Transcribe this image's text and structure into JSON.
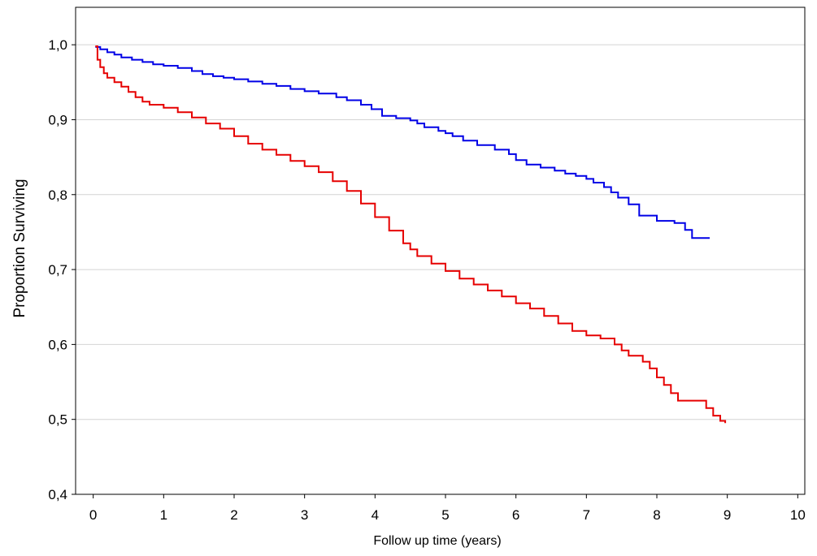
{
  "chart_data": {
    "type": "line",
    "step": true,
    "title": "",
    "xlabel": "Follow up time (years)",
    "ylabel": "Proportion Surviving",
    "xlim": [
      -0.25,
      10.1
    ],
    "ylim": [
      0.4,
      1.05
    ],
    "xticks": [
      0,
      1,
      2,
      3,
      4,
      5,
      6,
      7,
      8,
      9,
      10
    ],
    "xtick_labels": [
      "0",
      "1",
      "2",
      "3",
      "4",
      "5",
      "6",
      "7",
      "8",
      "9",
      "10"
    ],
    "yticks": [
      0.4,
      0.5,
      0.6,
      0.7,
      0.8,
      0.9,
      1.0
    ],
    "ytick_labels": [
      "0,4",
      "0,5",
      "0,6",
      "0,7",
      "0,8",
      "0,9",
      "1,0"
    ],
    "grid": "horizontal",
    "legend": "none",
    "series": [
      {
        "color": "#0000e6",
        "x": [
          0.03,
          0.1,
          0.2,
          0.3,
          0.4,
          0.55,
          0.7,
          0.85,
          1.0,
          1.2,
          1.4,
          1.55,
          1.7,
          1.85,
          2.0,
          2.2,
          2.4,
          2.6,
          2.8,
          3.0,
          3.2,
          3.45,
          3.6,
          3.8,
          3.95,
          4.1,
          4.3,
          4.5,
          4.6,
          4.7,
          4.9,
          5.0,
          5.1,
          5.25,
          5.45,
          5.7,
          5.9,
          6.0,
          6.15,
          6.35,
          6.55,
          6.7,
          6.85,
          7.0,
          7.1,
          7.25,
          7.35,
          7.45,
          7.6,
          7.75,
          8.0,
          8.25,
          8.4,
          8.5,
          8.75
        ],
        "y": [
          0.997,
          0.994,
          0.99,
          0.987,
          0.983,
          0.98,
          0.977,
          0.974,
          0.972,
          0.969,
          0.965,
          0.961,
          0.958,
          0.956,
          0.954,
          0.951,
          0.948,
          0.945,
          0.941,
          0.938,
          0.935,
          0.93,
          0.926,
          0.92,
          0.914,
          0.905,
          0.902,
          0.899,
          0.895,
          0.89,
          0.885,
          0.882,
          0.878,
          0.872,
          0.866,
          0.86,
          0.854,
          0.846,
          0.84,
          0.836,
          0.832,
          0.828,
          0.825,
          0.821,
          0.816,
          0.81,
          0.803,
          0.796,
          0.787,
          0.772,
          0.765,
          0.762,
          0.753,
          0.742,
          0.742
        ]
      },
      {
        "color": "#e60000",
        "x": [
          0.03,
          0.06,
          0.1,
          0.15,
          0.2,
          0.3,
          0.4,
          0.5,
          0.6,
          0.7,
          0.8,
          1.0,
          1.2,
          1.4,
          1.6,
          1.8,
          2.0,
          2.2,
          2.4,
          2.6,
          2.8,
          3.0,
          3.2,
          3.4,
          3.6,
          3.8,
          4.0,
          4.2,
          4.4,
          4.5,
          4.6,
          4.8,
          5.0,
          5.2,
          5.4,
          5.6,
          5.8,
          6.0,
          6.2,
          6.4,
          6.6,
          6.8,
          7.0,
          7.2,
          7.4,
          7.5,
          7.6,
          7.8,
          7.9,
          8.0,
          8.1,
          8.2,
          8.3,
          8.4,
          8.7,
          8.8,
          8.9,
          8.97
        ],
        "y": [
          0.998,
          0.98,
          0.97,
          0.962,
          0.956,
          0.95,
          0.944,
          0.937,
          0.93,
          0.924,
          0.92,
          0.916,
          0.91,
          0.903,
          0.895,
          0.888,
          0.878,
          0.868,
          0.86,
          0.853,
          0.845,
          0.838,
          0.83,
          0.818,
          0.805,
          0.788,
          0.77,
          0.752,
          0.735,
          0.727,
          0.718,
          0.708,
          0.698,
          0.688,
          0.68,
          0.672,
          0.664,
          0.655,
          0.648,
          0.638,
          0.628,
          0.618,
          0.612,
          0.608,
          0.6,
          0.592,
          0.585,
          0.577,
          0.568,
          0.556,
          0.546,
          0.535,
          0.525,
          0.525,
          0.515,
          0.505,
          0.498,
          0.495
        ]
      }
    ]
  }
}
